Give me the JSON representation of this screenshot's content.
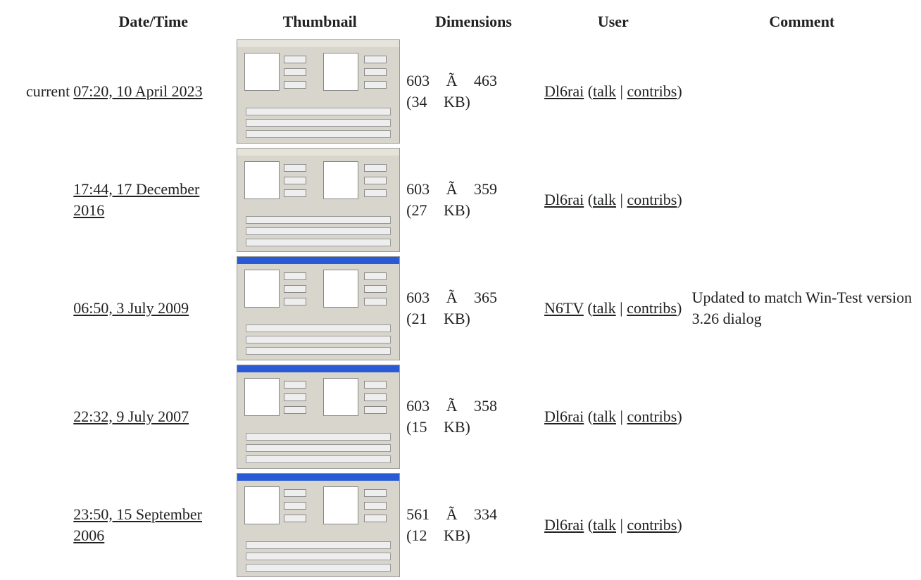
{
  "header": {
    "columns": [
      "Date/Time",
      "Thumbnail",
      "Dimensions",
      "User",
      "Comment"
    ]
  },
  "rows": [
    {
      "status": "current",
      "datetime": "07:20, 10 April 2023",
      "dimensions": "603 Ã 463 (34 KB)",
      "user": "Dl6rai",
      "talk": "talk",
      "contribs": "contribs"
    },
    {
      "datetime": "17:44, 17 December 2016",
      "dimensions": "603 Ã 359 (27 KB)",
      "user": "Dl6rai",
      "talk": "talk",
      "contribs": "contribs"
    },
    {
      "datetime": "06:50, 3 July 2009",
      "dimensions": "603 Ã 365 (21 KB)",
      "user": "N6TV",
      "talk": "talk",
      "contribs": "contribs",
      "comment": "Updated to match Win-Test version 3.26 dialog"
    },
    {
      "datetime": "22:32, 9 July 2007",
      "dimensions": "603 Ã 358 (15 KB)",
      "user": "Dl6rai",
      "talk": "talk",
      "contribs": "contribs"
    },
    {
      "datetime": "23:50, 15 September 2006",
      "dimensions": "561 Ã 334 (12 KB)",
      "user": "Dl6rai",
      "talk": "talk",
      "contribs": "contribs"
    }
  ]
}
